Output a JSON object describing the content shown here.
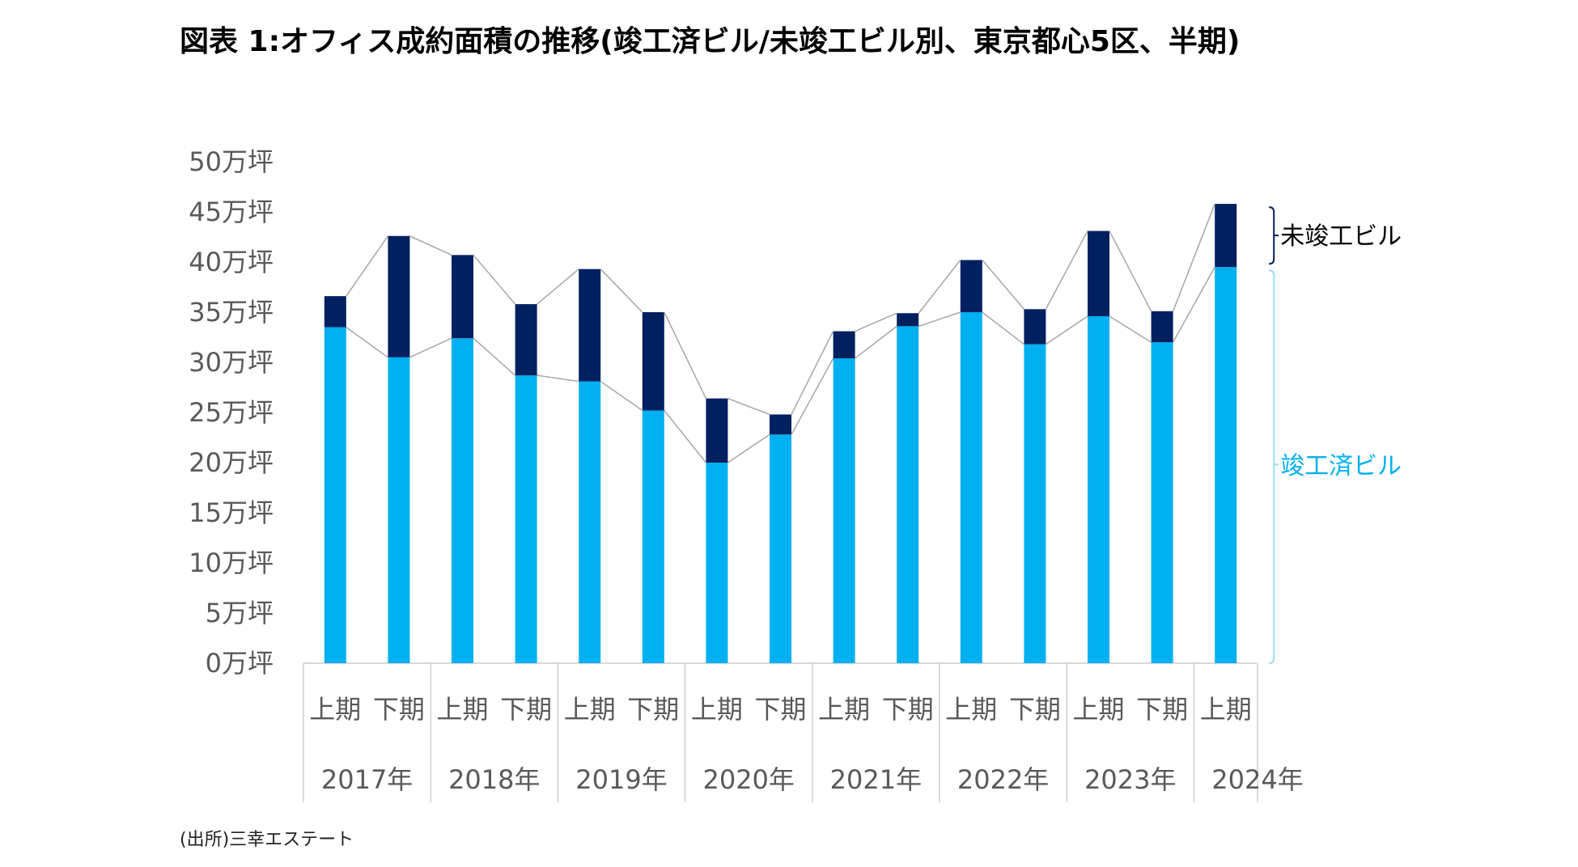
{
  "title": "図表 1:オフィス成約面積の推移(竣工済ビル/未竣工ビル別、東京都心5区、半期)",
  "source": "(出所)三幸エステート",
  "colors": {
    "completed": "#00B0F0",
    "uncompleted": "#002060",
    "connector": "#A6A6A6",
    "axis": "#D9D9D9",
    "tick_text": "#595959"
  },
  "chart_data": {
    "type": "bar",
    "stacked": true,
    "unit": "万坪",
    "ylim": [
      0,
      50
    ],
    "yticks": [
      0,
      5,
      10,
      15,
      20,
      25,
      30,
      35,
      40,
      45,
      50
    ],
    "ytick_labels": [
      "0万坪",
      "5万坪",
      "10万坪",
      "15万坪",
      "20万坪",
      "25万坪",
      "30万坪",
      "35万坪",
      "40万坪",
      "45万坪",
      "50万坪"
    ],
    "categories": [
      "上期",
      "下期",
      "上期",
      "下期",
      "上期",
      "下期",
      "上期",
      "下期",
      "上期",
      "下期",
      "上期",
      "下期",
      "上期",
      "下期",
      "上期"
    ],
    "groups": [
      {
        "label": "2017年",
        "count": 2
      },
      {
        "label": "2018年",
        "count": 2
      },
      {
        "label": "2019年",
        "count": 2
      },
      {
        "label": "2020年",
        "count": 2
      },
      {
        "label": "2021年",
        "count": 2
      },
      {
        "label": "2022年",
        "count": 2
      },
      {
        "label": "2023年",
        "count": 2
      },
      {
        "label": "2024年",
        "count": 1
      }
    ],
    "series": [
      {
        "name": "竣工済ビル",
        "values": [
          33.5,
          30.5,
          32.4,
          28.7,
          28.1,
          25.2,
          20.0,
          22.8,
          30.4,
          33.6,
          35.0,
          31.8,
          34.6,
          32.0,
          39.5
        ]
      },
      {
        "name": "未竣工ビル",
        "values": [
          3.1,
          12.1,
          8.3,
          7.1,
          11.2,
          9.8,
          6.4,
          2.0,
          2.7,
          1.3,
          5.2,
          3.5,
          8.5,
          3.1,
          6.3
        ]
      }
    ],
    "legend": [
      {
        "name": "未竣工ビル",
        "placement": "right-upper"
      },
      {
        "name": "竣工済ビル",
        "placement": "right-lower"
      }
    ]
  }
}
